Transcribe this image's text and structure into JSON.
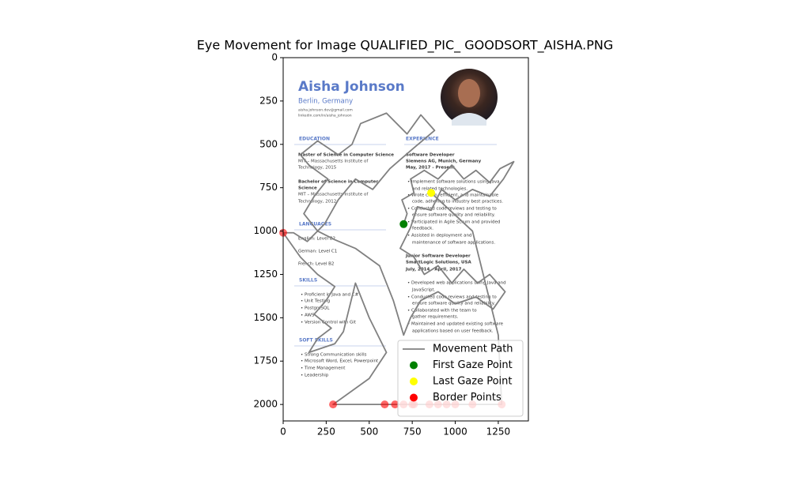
{
  "chart_data": {
    "type": "line",
    "title": "Eye Movement for Image QUALIFIED_PIC_ GOODSORT_AISHA.PNG",
    "xlim": [
      0,
      1425
    ],
    "ylim": [
      2095,
      0
    ],
    "xticks": [
      0,
      250,
      500,
      750,
      1000,
      1250
    ],
    "yticks": [
      0,
      250,
      500,
      750,
      1000,
      1250,
      1500,
      1750,
      2000
    ],
    "legend": "lower right",
    "series": [
      {
        "name": "Movement Path",
        "type": "line",
        "color": "gray",
        "x": [
          700,
          720,
          690,
          760,
          740,
          820,
          900,
          980,
          1050,
          1120,
          1200,
          1260,
          1340,
          1280,
          1200,
          1100,
          1000,
          920,
          860,
          780,
          740,
          680,
          760,
          820,
          900,
          980,
          1050,
          1130,
          1200,
          1290,
          1220,
          1120,
          1000,
          900,
          800,
          740,
          700,
          640,
          560,
          420,
          300,
          200,
          120,
          180,
          260,
          150,
          100,
          200,
          320,
          400,
          450,
          600,
          720,
          800,
          880,
          760,
          620,
          520,
          420,
          320,
          240,
          140,
          60,
          0,
          100,
          200,
          300,
          250,
          180,
          280,
          200,
          150,
          300,
          350,
          420,
          500,
          600,
          500,
          290,
          590,
          650,
          700,
          750,
          850,
          900,
          1000,
          1100,
          1270,
          1250,
          1100,
          860
        ],
        "y": [
          960,
          900,
          820,
          780,
          700,
          650,
          700,
          620,
          700,
          650,
          720,
          640,
          600,
          700,
          800,
          760,
          820,
          760,
          880,
          860,
          980,
          1100,
          1150,
          1250,
          1200,
          1300,
          1220,
          1300,
          1250,
          1350,
          1450,
          1380,
          1420,
          1350,
          1400,
          1500,
          1600,
          1400,
          1200,
          1100,
          1050,
          1000,
          900,
          800,
          700,
          620,
          560,
          480,
          560,
          500,
          380,
          320,
          440,
          330,
          420,
          520,
          640,
          760,
          700,
          820,
          960,
          1060,
          1010,
          1010,
          1150,
          1250,
          1320,
          1400,
          1480,
          1560,
          1620,
          1700,
          1650,
          1580,
          1300,
          1500,
          1700,
          1850,
          2000,
          2000,
          2000,
          2000,
          2000,
          2000,
          2000,
          2000,
          2000,
          2000,
          1600,
          1000,
          780
        ]
      },
      {
        "name": "First Gaze Point",
        "type": "scatter",
        "color": "green",
        "x": [
          700
        ],
        "y": [
          960
        ]
      },
      {
        "name": "Last Gaze Point",
        "type": "scatter",
        "color": "yellow",
        "x": [
          860
        ],
        "y": [
          780
        ]
      },
      {
        "name": "Border Points",
        "type": "scatter",
        "color": "red",
        "alpha": 0.6,
        "x": [
          0,
          290,
          590,
          650,
          700,
          750,
          760,
          850,
          900,
          950,
          1000,
          1100,
          1270
        ],
        "y": [
          1010,
          2000,
          2000,
          2000,
          2000,
          2000,
          2000,
          2000,
          2000,
          2000,
          2000,
          2000,
          2000
        ]
      }
    ],
    "background_texts": [
      "Aisha Johnson",
      "Berlin, Germany",
      "aisha.johnson.dev@gmail.com",
      "linkedin.com/in/aisha_johnson",
      "EDUCATION",
      "Master of Science in Computer Science",
      "MIT – Massachusetts Institute of",
      "Technology, 2015",
      "Bachelor of Science in Computer",
      "Science",
      "MIT – Massachusetts Institute of",
      "Technology, 2012",
      "LANGUAGES",
      "English: Level B2",
      "German: Level C1",
      "French: Level B2",
      "SKILLS",
      "•  Proficient in Java and C#",
      "•  Unit Testing",
      "•  PostgreSQL",
      "•  AWS",
      "•  Version Control with Git",
      "SOFT SKILLS",
      "•  Strong Communication skills",
      "•  Microsoft Word, Excel, Powerpoint",
      "•  Time Management",
      "•  Leadership",
      "EXPERIENCE",
      "Software Developer",
      "Siemens AG, Munich, Germany",
      "May, 2017 - Present",
      "•  Implement software solutions using Java",
      "and related technologies.",
      "•  Wrote clean, efficient, and maintainable",
      "code, adhering to industry best practices.",
      "•  Conducted code reviews and testing to",
      "ensure software quality and reliability.",
      "•  Participated in Agile Scrum and provided",
      "feedback.",
      "•  Assisted in deployment and",
      "maintenance of software applications.",
      "Junior Software Developer",
      "SmartLogic Solutions, USA",
      "July, 2014 - April, 2017",
      "•  Developed web applications using Java and",
      "JavaScript.",
      "•  Conducted code reviews and testing to",
      "ensure software quality and reliability.",
      "•  Collaborated with the team to",
      "gather requirements.",
      "•  Maintained and updated existing software",
      "applications based on user feedback."
    ]
  }
}
